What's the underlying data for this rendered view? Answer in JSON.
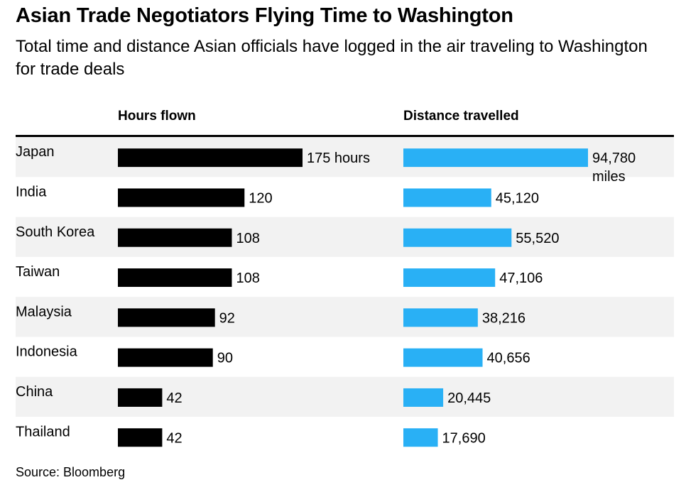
{
  "title": "Asian Trade Negotiators Flying Time to Washington",
  "subtitle": "Total time and distance Asian officials have logged in the air traveling to Washington for trade deals",
  "source": "Source: Bloomberg",
  "colors": {
    "hours_bar": "#000000",
    "distance_bar": "#29b0f5",
    "row_stripe": "#f2f2f2",
    "header_rule": "#000000"
  },
  "chart_data": {
    "type": "bar",
    "categories": [
      "Japan",
      "India",
      "South Korea",
      "Taiwan",
      "Malaysia",
      "Indonesia",
      "China",
      "Thailand"
    ],
    "series": [
      {
        "name": "Hours flown",
        "values": [
          175,
          120,
          108,
          108,
          92,
          90,
          42,
          42
        ],
        "labels": [
          "175 hours",
          "120",
          "108",
          "108",
          "92",
          "90",
          "42",
          "42"
        ]
      },
      {
        "name": "Distance travelled",
        "values": [
          94780,
          45120,
          55520,
          47106,
          38216,
          40656,
          20445,
          17690
        ],
        "labels": [
          "94,780\nmiles",
          "45,120",
          "55,520",
          "47,106",
          "38,216",
          "40,656",
          "20,445",
          "17,690"
        ]
      }
    ],
    "orientation": "horizontal",
    "grid": false,
    "legend": "none"
  }
}
